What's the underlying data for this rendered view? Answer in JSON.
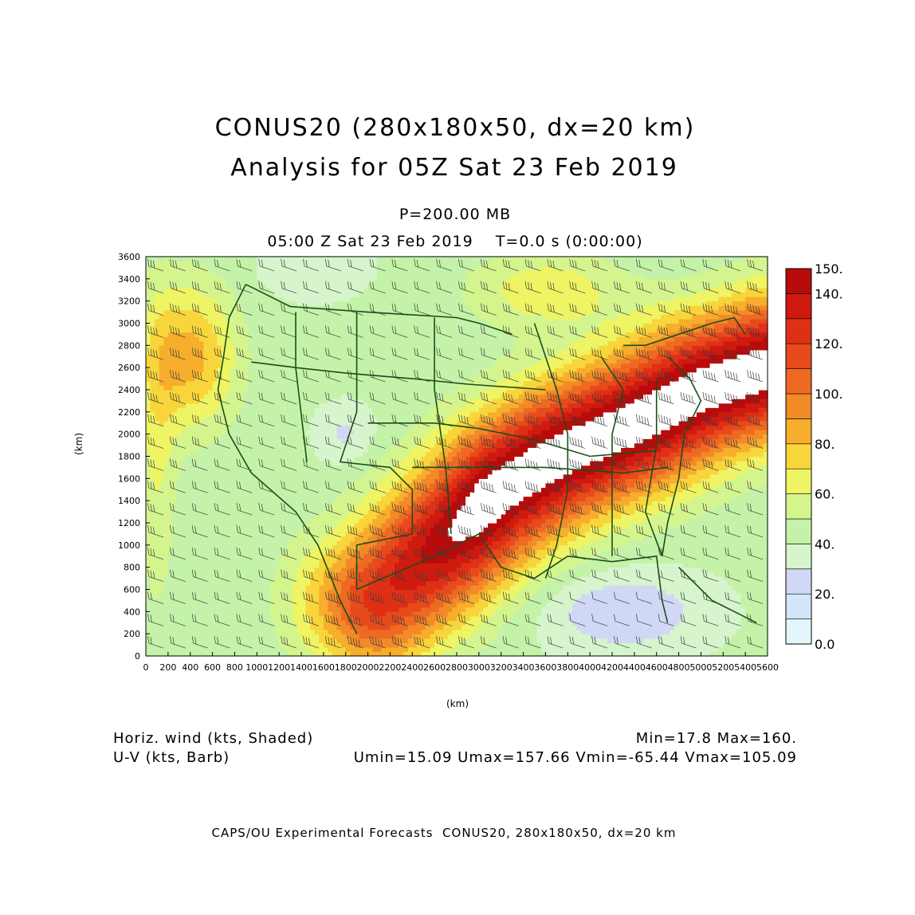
{
  "title": {
    "line1": "CONUS20 (280x180x50, dx=20 km)",
    "line2": "Analysis for 05Z Sat 23 Feb 2019"
  },
  "level": "P=200.00 MB",
  "valid_time": "05:00 Z Sat 23 Feb 2019    T=0.0 s (0:00:00)",
  "footer": "CAPS/OU Experimental Forecasts  CONUS20, 280x180x50, dx=20 km",
  "legend_text": {
    "shaded": "Horiz. wind (kts, Shaded)",
    "barb": "U-V (kts, Barb)",
    "minmax": "Min=17.8 Max=160.",
    "uv_range": "Umin=15.09 Umax=157.66 Vmin=-65.44 Vmax=105.09"
  },
  "chart_data": {
    "type": "heatmap",
    "xlabel": "(km)",
    "ylabel": "(km)",
    "xlim": [
      0,
      5600
    ],
    "ylim": [
      0,
      3600
    ],
    "x_ticks": [
      "0",
      "200",
      "400",
      "600",
      "800",
      "1000",
      "1200",
      "1400",
      "1600",
      "1800",
      "2000",
      "2200",
      "2400",
      "2600",
      "2800",
      "3000",
      "3200",
      "3400",
      "3600",
      "3800",
      "4000",
      "4200",
      "4400",
      "4600",
      "4800",
      "5000",
      "5200",
      "5400",
      "5600"
    ],
    "y_ticks": [
      "0",
      "200",
      "400",
      "600",
      "800",
      "1000",
      "1200",
      "1400",
      "1600",
      "1800",
      "2000",
      "2200",
      "2400",
      "2600",
      "2800",
      "3000",
      "3200",
      "3400",
      "3600"
    ],
    "colorbar": {
      "labels": [
        "0.0",
        "20.",
        "40.",
        "60.",
        "80.",
        "100.",
        "120.",
        "140.",
        "150."
      ],
      "bands": [
        {
          "from": 0,
          "to": 10,
          "color": "#e4f6fb"
        },
        {
          "from": 10,
          "to": 20,
          "color": "#d2e6f8"
        },
        {
          "from": 20,
          "to": 30,
          "color": "#d0d8f5"
        },
        {
          "from": 30,
          "to": 40,
          "color": "#d6f5cc"
        },
        {
          "from": 40,
          "to": 50,
          "color": "#c4f2a8"
        },
        {
          "from": 50,
          "to": 60,
          "color": "#d4f58e"
        },
        {
          "from": 60,
          "to": 70,
          "color": "#eef463"
        },
        {
          "from": 70,
          "to": 80,
          "color": "#f8d53a"
        },
        {
          "from": 80,
          "to": 90,
          "color": "#f7ae2d"
        },
        {
          "from": 90,
          "to": 100,
          "color": "#f38a28"
        },
        {
          "from": 100,
          "to": 110,
          "color": "#ee6a22"
        },
        {
          "from": 110,
          "to": 120,
          "color": "#e74b1c"
        },
        {
          "from": 120,
          "to": 130,
          "color": "#df3016"
        },
        {
          "from": 130,
          "to": 140,
          "color": "#cf1a10"
        },
        {
          "from": 140,
          "to": 150,
          "color": "#b80c0c"
        }
      ],
      "above_max_color": "#ffffff"
    },
    "map_line_color": "#1b4d1b"
  }
}
